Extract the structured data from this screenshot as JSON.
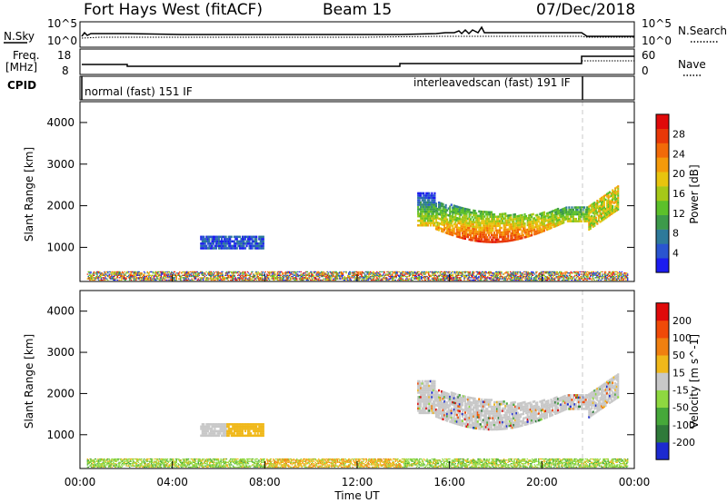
{
  "header": {
    "title": "Fort Hays West (fitACF)",
    "beam": "Beam 15",
    "date": "07/Dec/2018"
  },
  "noise_panel": {
    "left_label": "N.Sky",
    "left_ticks": [
      "10^5",
      "10^0"
    ],
    "right_ticks": [
      "10^5",
      "10^0"
    ],
    "right_label": "N.Search"
  },
  "freq_panel": {
    "label_line1": "Freq.",
    "label_line2": "[MHz]",
    "left_ticks": [
      "18",
      "8"
    ],
    "right_ticks": [
      "60",
      "0"
    ],
    "right_label": "Nave"
  },
  "cpid_panel": {
    "label": "CPID",
    "mode1": "normal (fast) 151 IF",
    "mode2": "interleavedscan (fast) 191 IF"
  },
  "x_axis": {
    "label": "Time UT",
    "ticks": [
      "00:00",
      "04:00",
      "08:00",
      "12:00",
      "16:00",
      "20:00",
      "00:00"
    ]
  },
  "chart_data": [
    {
      "type": "heatmap",
      "title": "",
      "ylabel": "Slant Range [km]",
      "xlabel": "",
      "y_ticks": [
        "1000",
        "2000",
        "3000",
        "4000"
      ],
      "ylim": [
        180,
        4500
      ],
      "xlim_hours": [
        0,
        24
      ],
      "colorbar": {
        "label": "Power [dB]",
        "ticks": [
          "4",
          "8",
          "12",
          "16",
          "20",
          "24",
          "28"
        ],
        "colors": [
          "#1c1cf0",
          "#2a55d0",
          "#2e7a9a",
          "#3d9a4a",
          "#5cc02a",
          "#a6c818",
          "#e8c40e",
          "#f49a0a",
          "#f26a08",
          "#e83808",
          "#e00a0a"
        ]
      },
      "features": [
        {
          "name": "near-range scatter",
          "t_start": 0.3,
          "t_end": 23.7,
          "range_km": [
            200,
            420
          ]
        },
        {
          "name": "patch",
          "t_start": 5.2,
          "t_end": 7.9,
          "range_km": [
            950,
            1250
          ]
        },
        {
          "name": "main band",
          "t_start": 14.6,
          "t_end": 22.0,
          "range_km": [
            1000,
            2300
          ]
        },
        {
          "name": "late patch",
          "t_start": 22.0,
          "t_end": 23.3,
          "range_km": [
            1500,
            2500
          ]
        }
      ]
    },
    {
      "type": "heatmap",
      "title": "",
      "ylabel": "Slant Range [km]",
      "xlabel": "Time UT",
      "y_ticks": [
        "1000",
        "2000",
        "3000",
        "4000"
      ],
      "ylim": [
        180,
        4500
      ],
      "xlim_hours": [
        0,
        24
      ],
      "colorbar": {
        "label": "Velocity [m s^-1]",
        "ticks": [
          "200",
          "100",
          "50",
          "15",
          "-15",
          "-50",
          "-100",
          "-200"
        ],
        "colors": [
          "#1c2ad0",
          "#2f7a3a",
          "#46a83a",
          "#8ed840",
          "#c8c8c8",
          "#f0b81a",
          "#f08010",
          "#f04a08",
          "#e00a0a"
        ]
      },
      "features": [
        {
          "name": "near-range scatter",
          "t_start": 0.3,
          "t_end": 23.7,
          "range_km": [
            200,
            420
          ]
        },
        {
          "name": "patch",
          "t_start": 5.2,
          "t_end": 7.9,
          "range_km": [
            950,
            1250
          ]
        },
        {
          "name": "main band",
          "t_start": 14.6,
          "t_end": 22.0,
          "range_km": [
            1000,
            2300
          ]
        },
        {
          "name": "late patch",
          "t_start": 22.0,
          "t_end": 23.3,
          "range_km": [
            1500,
            2500
          ]
        }
      ]
    }
  ]
}
